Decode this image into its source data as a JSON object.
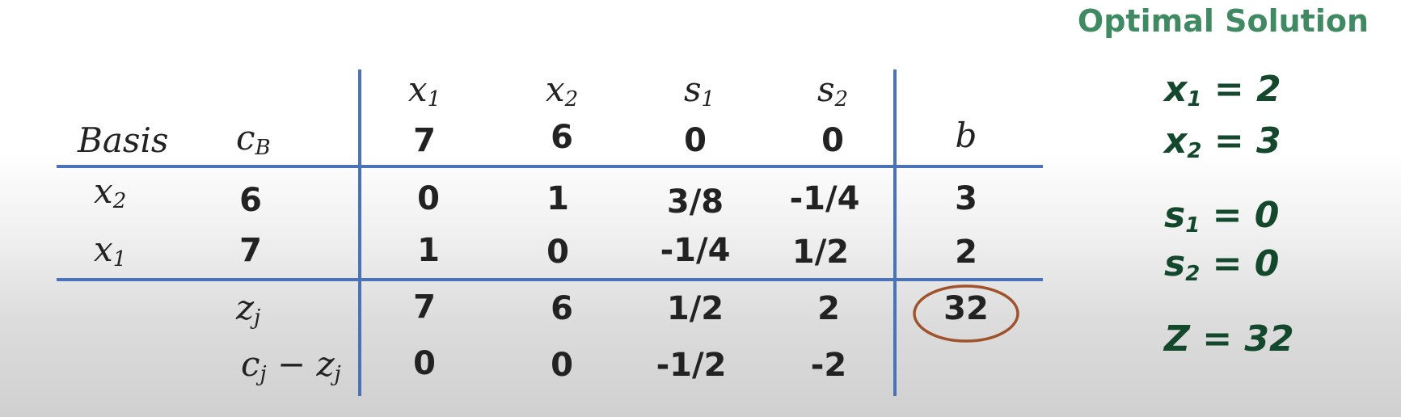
{
  "header": {
    "title": "Optimal Solution"
  },
  "table": {
    "basis_label": "Basis",
    "cb_label": "c",
    "cb_sub": "B",
    "b_label": "b",
    "columns": [
      {
        "sym": "x",
        "sub": "1",
        "cost": "7"
      },
      {
        "sym": "x",
        "sub": "2",
        "cost": "6"
      },
      {
        "sym": "s",
        "sub": "1",
        "cost": "0"
      },
      {
        "sym": "s",
        "sub": "2",
        "cost": "0"
      }
    ],
    "rows": [
      {
        "basis_sym": "x",
        "basis_sub": "2",
        "cb": "6",
        "values": [
          "0",
          "1",
          "3/8",
          "-1/4"
        ],
        "b": "3"
      },
      {
        "basis_sym": "x",
        "basis_sub": "1",
        "cb": "7",
        "values": [
          "1",
          "0",
          "-1/4",
          "1/2"
        ],
        "b": "2"
      }
    ],
    "zj": {
      "sym": "z",
      "sub": "j",
      "values": [
        "7",
        "6",
        "1/2",
        "2"
      ],
      "b": "32"
    },
    "cjzj": {
      "c_sym": "c",
      "c_sub": "j",
      "minus": "−",
      "z_sym": "z",
      "z_sub": "j",
      "values": [
        "0",
        "0",
        "-1/2",
        "-2"
      ]
    }
  },
  "solution": [
    {
      "var": "x",
      "sub": "1",
      "value": "= 2"
    },
    {
      "var": "x",
      "sub": "2",
      "value": "= 3"
    },
    {
      "var": "s",
      "sub": "1",
      "value": "= 0"
    },
    {
      "var": "s",
      "sub": "2",
      "value": "= 0"
    },
    {
      "var": "Z",
      "sub": "",
      "value": "= 32"
    }
  ],
  "colors": {
    "grid_lines": "#4a72b8",
    "highlight_circle": "#a0522d",
    "solution_text": "#13482d",
    "title_text": "#3f8a62"
  }
}
